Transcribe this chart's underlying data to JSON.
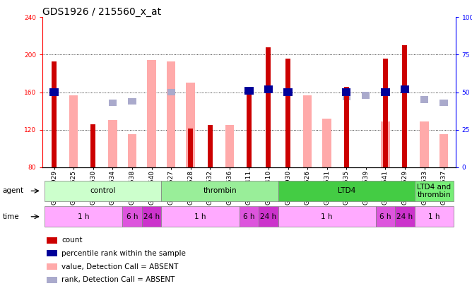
{
  "title": "GDS1926 / 215560_x_at",
  "samples": [
    "GSM27929",
    "GSM82525",
    "GSM82530",
    "GSM82534",
    "GSM82538",
    "GSM82540",
    "GSM82527",
    "GSM82528",
    "GSM82532",
    "GSM82536",
    "GSM95411",
    "GSM95410",
    "GSM27930",
    "GSM82526",
    "GSM82531",
    "GSM82535",
    "GSM82539",
    "GSM82541",
    "GSM82529",
    "GSM82533",
    "GSM82537"
  ],
  "count_values": [
    193,
    null,
    126,
    null,
    null,
    null,
    null,
    121,
    125,
    null,
    163,
    208,
    196,
    null,
    null,
    166,
    null,
    196,
    210,
    null,
    null
  ],
  "rank_values": [
    50,
    null,
    null,
    null,
    null,
    null,
    null,
    null,
    null,
    null,
    51,
    52,
    50,
    null,
    null,
    50,
    null,
    50,
    52,
    null,
    null
  ],
  "absent_value_values": [
    null,
    157,
    null,
    130,
    115,
    194,
    193,
    170,
    null,
    125,
    null,
    null,
    null,
    157,
    132,
    null,
    null,
    129,
    null,
    129,
    115
  ],
  "absent_rank_values": [
    null,
    null,
    null,
    43,
    44,
    null,
    50,
    null,
    null,
    null,
    null,
    null,
    null,
    null,
    null,
    47,
    48,
    null,
    null,
    45,
    43
  ],
  "count_color": "#cc0000",
  "rank_color": "#000099",
  "absent_value_color": "#ffaaaa",
  "absent_rank_color": "#aaaacc",
  "ylim_left": [
    80,
    240
  ],
  "ylim_right": [
    0,
    100
  ],
  "yticks_left": [
    80,
    120,
    160,
    200,
    240
  ],
  "yticks_right": [
    0,
    25,
    50,
    75,
    100
  ],
  "ytick_labels_right": [
    "0",
    "25",
    "50",
    "75",
    "100%"
  ],
  "groups": [
    {
      "label": "control",
      "start": 0,
      "end": 5,
      "color": "#ccffcc"
    },
    {
      "label": "thrombin",
      "start": 6,
      "end": 11,
      "color": "#99ee99"
    },
    {
      "label": "LTD4",
      "start": 12,
      "end": 18,
      "color": "#44cc44"
    },
    {
      "label": "LTD4 and\nthrombin",
      "start": 19,
      "end": 20,
      "color": "#77ee77"
    }
  ],
  "time_groups": [
    {
      "label": "1 h",
      "start": 0,
      "end": 3,
      "color": "#ffaaff"
    },
    {
      "label": "6 h",
      "start": 4,
      "end": 4,
      "color": "#dd55dd"
    },
    {
      "label": "24 h",
      "start": 5,
      "end": 5,
      "color": "#cc33cc"
    },
    {
      "label": "1 h",
      "start": 6,
      "end": 9,
      "color": "#ffaaff"
    },
    {
      "label": "6 h",
      "start": 10,
      "end": 10,
      "color": "#dd55dd"
    },
    {
      "label": "24 h",
      "start": 11,
      "end": 11,
      "color": "#cc33cc"
    },
    {
      "label": "1 h",
      "start": 12,
      "end": 16,
      "color": "#ffaaff"
    },
    {
      "label": "6 h",
      "start": 17,
      "end": 17,
      "color": "#dd55dd"
    },
    {
      "label": "24 h",
      "start": 18,
      "end": 18,
      "color": "#cc33cc"
    },
    {
      "label": "1 h",
      "start": 19,
      "end": 20,
      "color": "#ffaaff"
    }
  ],
  "legend_items": [
    {
      "color": "#cc0000",
      "label": "count"
    },
    {
      "color": "#000099",
      "label": "percentile rank within the sample"
    },
    {
      "color": "#ffaaaa",
      "label": "value, Detection Call = ABSENT"
    },
    {
      "color": "#aaaacc",
      "label": "rank, Detection Call = ABSENT"
    }
  ],
  "title_fontsize": 10,
  "tick_fontsize": 6.5,
  "label_fontsize": 7.5
}
